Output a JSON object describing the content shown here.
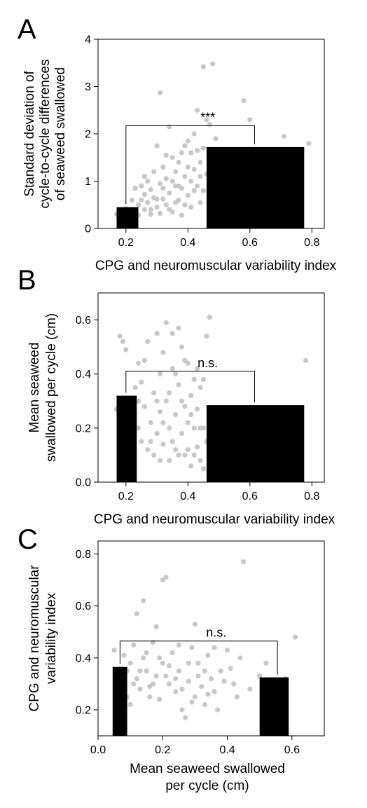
{
  "chart_data": [
    {
      "panel": "A",
      "type": "scatter",
      "xlabel": "CPG and neuromuscular variability index",
      "ylabel": [
        "Standard deviation of",
        "cycle-to-cycle differences",
        "of seaweed swallowed"
      ],
      "xlim": [
        0.11,
        0.84
      ],
      "ylim": [
        0,
        4
      ],
      "xticks": [
        "0.2",
        "0.4",
        "0.6",
        "0.8"
      ],
      "yticks": [
        "0",
        "1",
        "2",
        "3",
        "4"
      ],
      "xtick_values": [
        0.2,
        0.4,
        0.6,
        0.8
      ],
      "ytick_values": [
        0,
        1,
        2,
        3,
        4
      ],
      "bars": [
        {
          "x0": 0.17,
          "x1": 0.24,
          "value": 0.45
        },
        {
          "x0": 0.46,
          "x1": 0.775,
          "value": 1.72
        }
      ],
      "bracket": {
        "x0": 0.2,
        "x1": 0.615,
        "y": 2.17,
        "label": "***"
      },
      "points": [
        [
          0.17,
          0.3
        ],
        [
          0.18,
          0.22
        ],
        [
          0.19,
          0.35
        ],
        [
          0.2,
          0.25
        ],
        [
          0.2,
          0.42
        ],
        [
          0.21,
          0.3
        ],
        [
          0.22,
          0.2
        ],
        [
          0.23,
          0.38
        ],
        [
          0.24,
          0.5
        ],
        [
          0.24,
          0.28
        ],
        [
          0.25,
          0.6
        ],
        [
          0.25,
          0.9
        ],
        [
          0.26,
          0.72
        ],
        [
          0.26,
          0.4
        ],
        [
          0.27,
          0.55
        ],
        [
          0.27,
          1.0
        ],
        [
          0.28,
          0.82
        ],
        [
          0.28,
          0.3
        ],
        [
          0.29,
          1.2
        ],
        [
          0.29,
          0.65
        ],
        [
          0.3,
          0.45
        ],
        [
          0.3,
          1.75
        ],
        [
          0.31,
          2.87
        ],
        [
          0.31,
          0.95
        ],
        [
          0.32,
          0.62
        ],
        [
          0.32,
          1.3
        ],
        [
          0.33,
          0.5
        ],
        [
          0.33,
          1.05
        ],
        [
          0.34,
          2.15
        ],
        [
          0.34,
          0.75
        ],
        [
          0.35,
          1.5
        ],
        [
          0.35,
          0.35
        ],
        [
          0.36,
          0.9
        ],
        [
          0.36,
          1.2
        ],
        [
          0.37,
          0.6
        ],
        [
          0.37,
          1.4
        ],
        [
          0.38,
          0.85
        ],
        [
          0.38,
          0.28
        ],
        [
          0.39,
          1.75
        ],
        [
          0.39,
          1.1
        ],
        [
          0.4,
          0.7
        ],
        [
          0.4,
          1.85
        ],
        [
          0.41,
          1.6
        ],
        [
          0.41,
          0.45
        ],
        [
          0.42,
          2.0
        ],
        [
          0.42,
          1.25
        ],
        [
          0.43,
          2.5
        ],
        [
          0.43,
          0.9
        ],
        [
          0.44,
          1.4
        ],
        [
          0.44,
          0.55
        ],
        [
          0.45,
          3.42
        ],
        [
          0.45,
          1.7
        ],
        [
          0.46,
          2.3
        ],
        [
          0.46,
          1.15
        ],
        [
          0.47,
          2.2
        ],
        [
          0.47,
          1.55
        ],
        [
          0.48,
          3.48
        ],
        [
          0.48,
          0.6
        ],
        [
          0.49,
          1.9
        ],
        [
          0.5,
          1.62
        ],
        [
          0.53,
          1.55
        ],
        [
          0.58,
          2.7
        ],
        [
          0.6,
          2.3
        ],
        [
          0.62,
          1.47
        ],
        [
          0.7,
          1.0
        ],
        [
          0.71,
          1.95
        ],
        [
          0.79,
          1.8
        ],
        [
          0.22,
          0.6
        ],
        [
          0.23,
          0.85
        ],
        [
          0.26,
          1.1
        ],
        [
          0.28,
          0.4
        ],
        [
          0.3,
          0.62
        ],
        [
          0.31,
          0.32
        ],
        [
          0.32,
          0.85
        ],
        [
          0.33,
          1.55
        ],
        [
          0.34,
          0.4
        ],
        [
          0.35,
          1.0
        ],
        [
          0.36,
          0.55
        ],
        [
          0.37,
          0.9
        ],
        [
          0.38,
          1.6
        ],
        [
          0.39,
          0.5
        ],
        [
          0.4,
          1.3
        ],
        [
          0.41,
          1.0
        ],
        [
          0.42,
          0.8
        ],
        [
          0.43,
          1.65
        ],
        [
          0.44,
          1.1
        ],
        [
          0.45,
          0.8
        ],
        [
          0.47,
          0.95
        ],
        [
          0.49,
          1.3
        ]
      ]
    },
    {
      "panel": "B",
      "type": "scatter",
      "xlabel": "CPG and neuromuscular variability index",
      "ylabel": [
        "Mean seaweed",
        "swallowed per cycle (cm)"
      ],
      "xlim": [
        0.11,
        0.84
      ],
      "ylim": [
        0,
        0.7
      ],
      "xticks": [
        "0.2",
        "0.4",
        "0.6",
        "0.8"
      ],
      "yticks": [
        "0.0",
        "0.2",
        "0.4",
        "0.6"
      ],
      "xtick_values": [
        0.2,
        0.4,
        0.6,
        0.8
      ],
      "ytick_values": [
        0,
        0.2,
        0.4,
        0.6
      ],
      "bars": [
        {
          "x0": 0.17,
          "x1": 0.235,
          "value": 0.32
        },
        {
          "x0": 0.46,
          "x1": 0.775,
          "value": 0.285
        }
      ],
      "bracket": {
        "x0": 0.2,
        "x1": 0.615,
        "y": 0.41,
        "label": "n.s."
      },
      "points": [
        [
          0.17,
          0.27
        ],
        [
          0.18,
          0.54
        ],
        [
          0.19,
          0.52
        ],
        [
          0.2,
          0.26
        ],
        [
          0.2,
          0.49
        ],
        [
          0.21,
          0.3
        ],
        [
          0.22,
          0.09
        ],
        [
          0.23,
          0.35
        ],
        [
          0.24,
          0.44
        ],
        [
          0.24,
          0.2
        ],
        [
          0.25,
          0.37
        ],
        [
          0.25,
          0.15
        ],
        [
          0.26,
          0.28
        ],
        [
          0.27,
          0.12
        ],
        [
          0.27,
          0.52
        ],
        [
          0.28,
          0.22
        ],
        [
          0.29,
          0.33
        ],
        [
          0.29,
          0.1
        ],
        [
          0.3,
          0.55
        ],
        [
          0.3,
          0.18
        ],
        [
          0.31,
          0.4
        ],
        [
          0.31,
          0.26
        ],
        [
          0.32,
          0.14
        ],
        [
          0.32,
          0.48
        ],
        [
          0.33,
          0.59
        ],
        [
          0.33,
          0.3
        ],
        [
          0.34,
          0.08
        ],
        [
          0.34,
          0.2
        ],
        [
          0.35,
          0.42
        ],
        [
          0.35,
          0.55
        ],
        [
          0.36,
          0.25
        ],
        [
          0.36,
          0.12
        ],
        [
          0.37,
          0.57
        ],
        [
          0.37,
          0.36
        ],
        [
          0.38,
          0.18
        ],
        [
          0.38,
          0.5
        ],
        [
          0.39,
          0.28
        ],
        [
          0.39,
          0.1
        ],
        [
          0.4,
          0.44
        ],
        [
          0.4,
          0.22
        ],
        [
          0.41,
          0.32
        ],
        [
          0.41,
          0.06
        ],
        [
          0.42,
          0.2
        ],
        [
          0.42,
          0.38
        ],
        [
          0.43,
          0.13
        ],
        [
          0.43,
          0.27
        ],
        [
          0.44,
          0.08
        ],
        [
          0.44,
          0.35
        ],
        [
          0.45,
          0.05
        ],
        [
          0.45,
          0.2
        ],
        [
          0.46,
          0.54
        ],
        [
          0.47,
          0.61
        ],
        [
          0.47,
          0.26
        ],
        [
          0.5,
          0.15
        ],
        [
          0.55,
          0.18
        ],
        [
          0.57,
          0.12
        ],
        [
          0.62,
          0.13
        ],
        [
          0.7,
          0.2
        ],
        [
          0.71,
          0.21
        ],
        [
          0.78,
          0.45
        ],
        [
          0.22,
          0.25
        ],
        [
          0.24,
          0.3
        ],
        [
          0.26,
          0.45
        ],
        [
          0.28,
          0.15
        ],
        [
          0.3,
          0.3
        ],
        [
          0.31,
          0.08
        ],
        [
          0.32,
          0.22
        ],
        [
          0.34,
          0.33
        ],
        [
          0.35,
          0.15
        ],
        [
          0.36,
          0.4
        ],
        [
          0.37,
          0.1
        ],
        [
          0.38,
          0.3
        ],
        [
          0.39,
          0.45
        ],
        [
          0.4,
          0.12
        ],
        [
          0.41,
          0.25
        ],
        [
          0.42,
          0.1
        ],
        [
          0.43,
          0.42
        ],
        [
          0.44,
          0.2
        ],
        [
          0.45,
          0.38
        ],
        [
          0.46,
          0.15
        ]
      ]
    },
    {
      "panel": "C",
      "type": "scatter",
      "xlabel": [
        "Mean seaweed swallowed",
        "per cycle (cm)"
      ],
      "ylabel": [
        "CPG and neuromuscular",
        "variability index"
      ],
      "xlim": [
        0,
        0.7
      ],
      "ylim": [
        0.1,
        0.85
      ],
      "xticks": [
        "0.0",
        "0.2",
        "0.4",
        "0.6"
      ],
      "yticks": [
        "0.2",
        "0.4",
        "0.6",
        "0.8"
      ],
      "xtick_values": [
        0,
        0.2,
        0.4,
        0.6
      ],
      "ytick_values": [
        0.2,
        0.4,
        0.6,
        0.8
      ],
      "bars": [
        {
          "x0": 0.045,
          "x1": 0.09,
          "value": 0.365
        },
        {
          "x0": 0.5,
          "x1": 0.59,
          "value": 0.325
        }
      ],
      "bracket": {
        "x0": 0.068,
        "x1": 0.555,
        "y": 0.465,
        "label": "n.s."
      },
      "points": [
        [
          0.05,
          0.43
        ],
        [
          0.06,
          0.29
        ],
        [
          0.07,
          0.36
        ],
        [
          0.08,
          0.41
        ],
        [
          0.08,
          0.31
        ],
        [
          0.09,
          0.25
        ],
        [
          0.1,
          0.38
        ],
        [
          0.1,
          0.22
        ],
        [
          0.11,
          0.45
        ],
        [
          0.12,
          0.32
        ],
        [
          0.12,
          0.57
        ],
        [
          0.13,
          0.28
        ],
        [
          0.14,
          0.62
        ],
        [
          0.14,
          0.4
        ],
        [
          0.15,
          0.35
        ],
        [
          0.16,
          0.29
        ],
        [
          0.17,
          0.46
        ],
        [
          0.18,
          0.52
        ],
        [
          0.18,
          0.33
        ],
        [
          0.19,
          0.24
        ],
        [
          0.2,
          0.7
        ],
        [
          0.2,
          0.38
        ],
        [
          0.21,
          0.71
        ],
        [
          0.22,
          0.3
        ],
        [
          0.23,
          0.42
        ],
        [
          0.24,
          0.27
        ],
        [
          0.25,
          0.35
        ],
        [
          0.26,
          0.2
        ],
        [
          0.27,
          0.17
        ],
        [
          0.28,
          0.31
        ],
        [
          0.29,
          0.44
        ],
        [
          0.3,
          0.53
        ],
        [
          0.3,
          0.25
        ],
        [
          0.31,
          0.38
        ],
        [
          0.32,
          0.29
        ],
        [
          0.33,
          0.22
        ],
        [
          0.34,
          0.41
        ],
        [
          0.35,
          0.32
        ],
        [
          0.36,
          0.27
        ],
        [
          0.37,
          0.2
        ],
        [
          0.38,
          0.35
        ],
        [
          0.4,
          0.43
        ],
        [
          0.42,
          0.3
        ],
        [
          0.44,
          0.4
        ],
        [
          0.45,
          0.77
        ],
        [
          0.47,
          0.28
        ],
        [
          0.5,
          0.33
        ],
        [
          0.51,
          0.2
        ],
        [
          0.53,
          0.19
        ],
        [
          0.54,
          0.3
        ],
        [
          0.55,
          0.26
        ],
        [
          0.58,
          0.32
        ],
        [
          0.61,
          0.48
        ],
        [
          0.09,
          0.35
        ],
        [
          0.11,
          0.3
        ],
        [
          0.13,
          0.35
        ],
        [
          0.15,
          0.42
        ],
        [
          0.16,
          0.25
        ],
        [
          0.17,
          0.3
        ],
        [
          0.19,
          0.4
        ],
        [
          0.21,
          0.33
        ],
        [
          0.22,
          0.37
        ],
        [
          0.24,
          0.32
        ],
        [
          0.25,
          0.45
        ],
        [
          0.26,
          0.28
        ],
        [
          0.28,
          0.38
        ],
        [
          0.29,
          0.23
        ],
        [
          0.31,
          0.33
        ],
        [
          0.33,
          0.35
        ],
        [
          0.34,
          0.26
        ],
        [
          0.36,
          0.44
        ],
        [
          0.39,
          0.31
        ],
        [
          0.41,
          0.36
        ],
        [
          0.43,
          0.25
        ],
        [
          0.52,
          0.38
        ],
        [
          0.56,
          0.31
        ]
      ]
    }
  ]
}
